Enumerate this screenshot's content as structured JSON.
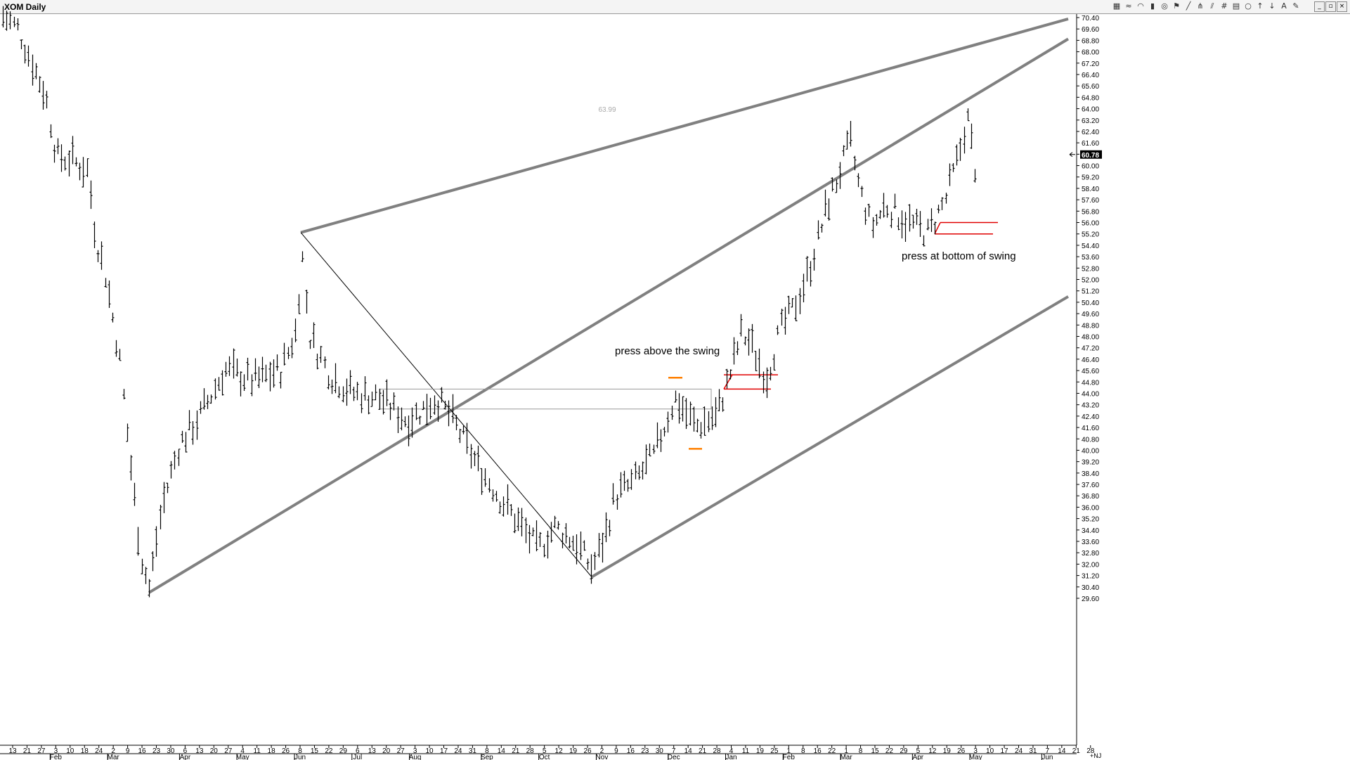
{
  "window": {
    "title": "XOM Daily",
    "toolbar_icons": [
      "cubes-icon",
      "wave-icon",
      "rainbow-icon",
      "candle-icon",
      "fib-circle-icon",
      "flag-icon",
      "line-tool-icon",
      "pitchfork-icon",
      "parallel-lines-icon",
      "grid-icon",
      "table-icon",
      "circle-icon",
      "arrow-up-icon",
      "arrow-down-icon",
      "text-icon",
      "pencil-icon"
    ],
    "buttons": {
      "minimize": "_",
      "restore": "▫",
      "close": "×"
    },
    "corner_label": "+NJ"
  },
  "chart_data": {
    "type": "ohlc",
    "symbol": "XOM",
    "interval": "Daily",
    "ylim": [
      29.6,
      70.6
    ],
    "y_ticks": [
      "70.40",
      "69.60",
      "68.80",
      "68.00",
      "67.20",
      "66.40",
      "65.60",
      "64.80",
      "64.00",
      "63.20",
      "62.40",
      "61.60",
      "60.80",
      "60.00",
      "59.20",
      "58.40",
      "57.60",
      "56.80",
      "56.00",
      "55.20",
      "54.40",
      "53.60",
      "52.80",
      "52.00",
      "51.20",
      "50.40",
      "49.60",
      "48.80",
      "48.00",
      "47.20",
      "46.40",
      "45.60",
      "44.80",
      "44.00",
      "43.20",
      "42.40",
      "41.60",
      "40.80",
      "40.00",
      "39.20",
      "38.40",
      "37.60",
      "36.80",
      "36.00",
      "35.20",
      "34.40",
      "33.60",
      "32.80",
      "32.00",
      "31.20",
      "30.40",
      "29.60"
    ],
    "x_day_labels": [
      "13",
      "21",
      "27",
      "3",
      "10",
      "18",
      "24",
      "2",
      "9",
      "16",
      "23",
      "30",
      "6",
      "13",
      "20",
      "27",
      "4",
      "11",
      "18",
      "26",
      "8",
      "15",
      "22",
      "29",
      "6",
      "13",
      "20",
      "27",
      "3",
      "10",
      "17",
      "24",
      "31",
      "8",
      "14",
      "21",
      "28",
      "5",
      "12",
      "19",
      "26",
      "2",
      "9",
      "16",
      "23",
      "30",
      "7",
      "14",
      "21",
      "28",
      "4",
      "11",
      "19",
      "25",
      "1",
      "8",
      "16",
      "22",
      "1",
      "8",
      "15",
      "22",
      "29",
      "5",
      "12",
      "19",
      "26",
      "3",
      "10",
      "17",
      "24",
      "31",
      "7",
      "14",
      "21",
      "28"
    ],
    "x_month_labels": [
      {
        "label": "Feb",
        "at": "3"
      },
      {
        "label": "Mar",
        "at": "2"
      },
      {
        "label": "Apr",
        "at": "6"
      },
      {
        "label": "May",
        "at": "4"
      },
      {
        "label": "Jun",
        "at": "8"
      },
      {
        "label": "Jul",
        "at": "6"
      },
      {
        "label": "Aug",
        "at": "3"
      },
      {
        "label": "Sep",
        "at": "8"
      },
      {
        "label": "Oct",
        "at": "5"
      },
      {
        "label": "Nov",
        "at": "2"
      },
      {
        "label": "Dec",
        "at": "7"
      },
      {
        "label": "Jan",
        "at": "4"
      },
      {
        "label": "Feb",
        "at": "1"
      },
      {
        "label": "Mar",
        "at": "1"
      },
      {
        "label": "Apr",
        "at": "5"
      },
      {
        "label": "May",
        "at": "3"
      },
      {
        "label": "Jun",
        "at": "7"
      }
    ],
    "last_price": "60.78",
    "floating_label": "63.99",
    "key_prices": [
      {
        "date": "Jan start",
        "price": 70.4
      },
      {
        "date": "Mar 23",
        "price": 30.1
      },
      {
        "date": "Jun 8",
        "price": 55.3
      },
      {
        "date": "Oct 30",
        "price": 31.1
      },
      {
        "date": "Mar 12",
        "price": 62.5
      },
      {
        "date": "Apr 23",
        "price": 54.6
      },
      {
        "date": "May 10",
        "price": 64.0
      },
      {
        "date": "May 14",
        "price": 60.78
      }
    ],
    "annotations": [
      {
        "text": "press above the swing"
      },
      {
        "text": "press at bottom of swing"
      }
    ],
    "colors": {
      "bars": "#000000",
      "channel": "#808080",
      "diagonal": "#000000",
      "zone_box": "#999999",
      "swing_marks": "#ff7f00",
      "press_lines": "#e00000",
      "last_price_bg": "#000000"
    }
  }
}
